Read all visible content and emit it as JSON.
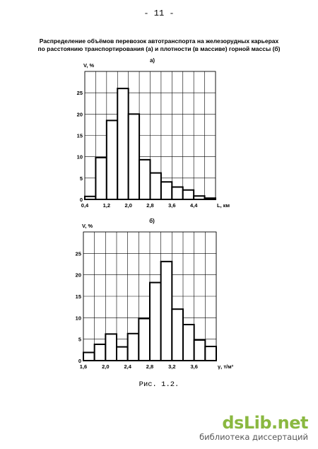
{
  "page": {
    "number": "- 11 -",
    "title_line1": "Распределение объёмов перевозок автотранспорта на железорудных карьерах",
    "title_line2": "по расстоянию транспортирования (а) и плотности (в массиве) горной массы (б)",
    "caption": "Рис. 1.2."
  },
  "watermark": {
    "logo": "dsLib.net",
    "subtitle": "библиотека диссертаций"
  },
  "chart_data": [
    {
      "type": "bar",
      "panel_label": "а)",
      "ylabel": "V, %",
      "xlabel": "L, км",
      "yticks": [
        0,
        5,
        10,
        15,
        20,
        25
      ],
      "xticks": [
        "0,4",
        "1,2",
        "2,0",
        "2,8",
        "3,6",
        "4,4"
      ],
      "xlim": [
        0.4,
        5.2
      ],
      "ylim": [
        0,
        30
      ],
      "bin_width": 0.4,
      "bin_starts": [
        0.4,
        0.8,
        1.2,
        1.6,
        2.0,
        2.4,
        2.8,
        3.2,
        3.6,
        4.0,
        4.4,
        4.8
      ],
      "values": [
        0.7,
        9.8,
        18.5,
        26.0,
        20.0,
        9.3,
        6.2,
        4.1,
        2.9,
        2.2,
        0.8,
        0.3
      ],
      "grid": true
    },
    {
      "type": "bar",
      "panel_label": "б)",
      "ylabel": "V, %",
      "xlabel": "γ, т/м³",
      "yticks": [
        0,
        5,
        10,
        15,
        20,
        25
      ],
      "xticks": [
        "1,6",
        "2,0",
        "2,4",
        "2,8",
        "3,2",
        "3,6"
      ],
      "xlim": [
        1.6,
        4.0
      ],
      "ylim": [
        0,
        30
      ],
      "bin_width": 0.2,
      "bin_starts": [
        1.6,
        1.8,
        2.0,
        2.2,
        2.4,
        2.6,
        2.8,
        3.0,
        3.2,
        3.4,
        3.6,
        3.8
      ],
      "values": [
        1.9,
        3.8,
        6.2,
        3.2,
        6.3,
        9.8,
        18.2,
        23.1,
        12.0,
        8.4,
        4.8,
        3.3
      ],
      "grid": true
    }
  ]
}
